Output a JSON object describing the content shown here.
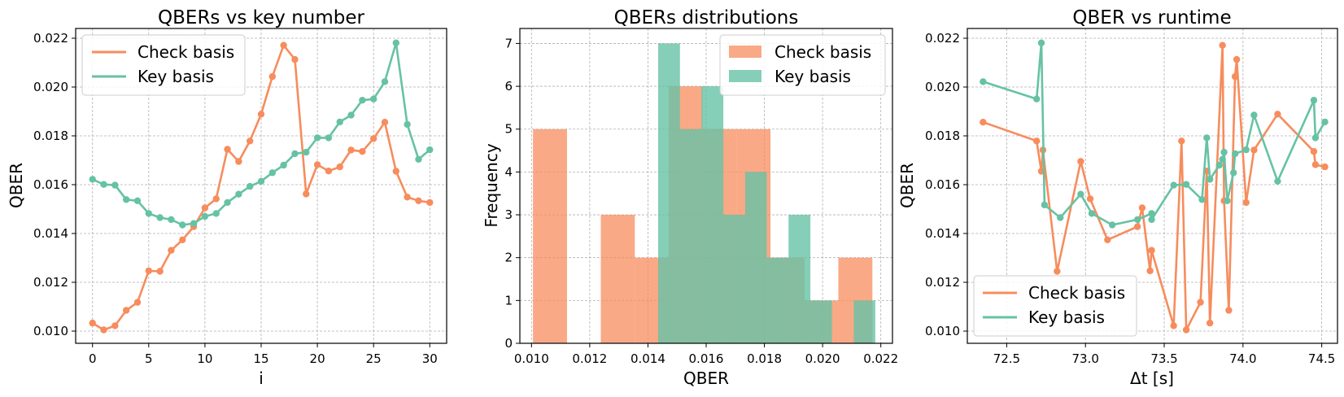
{
  "colors": {
    "check": "#f78c5d",
    "key": "#66c2a5",
    "grid": "#b0b0b0"
  },
  "chart_data": [
    {
      "type": "line",
      "title": "QBERs vs key number",
      "xlabel": "i",
      "ylabel": "QBER",
      "xlim": [
        -1.5,
        31.5
      ],
      "ylim": [
        0.0095,
        0.0224
      ],
      "xticks": [
        0,
        5,
        10,
        15,
        20,
        25,
        30
      ],
      "xtick_labels": [
        "0",
        "5",
        "10",
        "15",
        "20",
        "25",
        "30"
      ],
      "yticks": [
        0.01,
        0.012,
        0.014,
        0.016,
        0.018,
        0.02,
        0.022
      ],
      "ytick_labels": [
        "0.010",
        "0.012",
        "0.014",
        "0.016",
        "0.018",
        "0.020",
        "0.022"
      ],
      "grid": true,
      "legend": "upper-left",
      "x": [
        0,
        1,
        2,
        3,
        4,
        5,
        6,
        7,
        8,
        9,
        10,
        11,
        12,
        13,
        14,
        15,
        16,
        17,
        18,
        19,
        20,
        21,
        22,
        23,
        24,
        25,
        26,
        27,
        28,
        29,
        30
      ],
      "series": [
        {
          "name": "Check basis",
          "color": "#f78c5d",
          "values": [
            0.01033,
            0.01005,
            0.01022,
            0.01085,
            0.01118,
            0.01247,
            0.01245,
            0.01331,
            0.01374,
            0.01428,
            0.01505,
            0.01542,
            0.01745,
            0.01695,
            0.01779,
            0.01889,
            0.02043,
            0.02171,
            0.02113,
            0.01562,
            0.01682,
            0.01656,
            0.01673,
            0.01742,
            0.01736,
            0.01789,
            0.01856,
            0.01655,
            0.01549,
            0.01534,
            0.01527
          ]
        },
        {
          "name": "Key basis",
          "color": "#66c2a5",
          "values": [
            0.01622,
            0.01601,
            0.01598,
            0.01539,
            0.01534,
            0.01482,
            0.01465,
            0.01457,
            0.01435,
            0.01441,
            0.0147,
            0.01482,
            0.01527,
            0.01561,
            0.01593,
            0.01614,
            0.01649,
            0.0168,
            0.01727,
            0.01733,
            0.01792,
            0.01792,
            0.01857,
            0.01885,
            0.01946,
            0.01951,
            0.02022,
            0.02181,
            0.01847,
            0.01704,
            0.01743
          ]
        }
      ]
    },
    {
      "type": "histogram",
      "title": "QBERs distributions",
      "xlabel": "QBER",
      "ylabel": "Frequency",
      "xlim": [
        0.0096,
        0.0224
      ],
      "ylim": [
        0,
        7.35
      ],
      "xticks": [
        0.01,
        0.012,
        0.014,
        0.016,
        0.018,
        0.02,
        0.022
      ],
      "xtick_labels": [
        "0.010",
        "0.012",
        "0.014",
        "0.016",
        "0.018",
        "0.020",
        "0.022"
      ],
      "yticks": [
        0,
        1,
        2,
        3,
        4,
        5,
        6,
        7
      ],
      "ytick_labels": [
        "0",
        "1",
        "2",
        "3",
        "4",
        "5",
        "6",
        "7"
      ],
      "grid": true,
      "legend": "upper-right",
      "series": [
        {
          "name": "Check basis",
          "color": "#f78c5d",
          "opacity": 0.75,
          "bin_edges": [
            0.01005,
            0.01122,
            0.01238,
            0.01355,
            0.01471,
            0.01588,
            0.01704,
            0.01821,
            0.01938,
            0.02054,
            0.02171
          ],
          "counts": [
            5,
            0,
            3,
            2,
            6,
            5,
            5,
            2,
            1,
            2
          ]
        },
        {
          "name": "Key basis",
          "color": "#66c2a5",
          "opacity": 0.8,
          "bin_edges": [
            0.01435,
            0.0151,
            0.01584,
            0.01659,
            0.01734,
            0.01808,
            0.01883,
            0.01958,
            0.02032,
            0.02107,
            0.02181
          ],
          "counts": [
            7,
            5,
            6,
            3,
            4,
            2,
            3,
            1,
            0,
            1
          ]
        }
      ]
    },
    {
      "type": "line",
      "title": "QBER vs runtime",
      "xlabel": "Δt [s]",
      "ylabel": "QBER",
      "xlim": [
        72.25,
        74.6
      ],
      "ylim": [
        0.0095,
        0.0224
      ],
      "xticks": [
        72.5,
        73.0,
        73.5,
        74.0,
        74.5
      ],
      "xtick_labels": [
        "72.5",
        "73.0",
        "73.5",
        "74.0",
        "74.5"
      ],
      "yticks": [
        0.01,
        0.012,
        0.014,
        0.016,
        0.018,
        0.02,
        0.022
      ],
      "ytick_labels": [
        "0.010",
        "0.012",
        "0.014",
        "0.016",
        "0.018",
        "0.020",
        "0.022"
      ],
      "grid": true,
      "legend": "lower-left",
      "series": [
        {
          "name": "Check basis",
          "color": "#f78c5d",
          "x": [
            72.35,
            72.69,
            72.72,
            72.73,
            72.82,
            72.97,
            73.03,
            73.14,
            73.33,
            73.36,
            73.41,
            73.42,
            73.56,
            73.61,
            73.64,
            73.73,
            73.77,
            73.79,
            73.87,
            73.88,
            73.91,
            73.95,
            73.96,
            74.02,
            74.07,
            74.22,
            74.45,
            74.46,
            74.52
          ],
          "y": [
            0.01856,
            0.01779,
            0.01655,
            0.01742,
            0.01245,
            0.01695,
            0.01542,
            0.01374,
            0.01428,
            0.01505,
            0.01247,
            0.01331,
            0.01022,
            0.01779,
            0.01005,
            0.01118,
            0.01656,
            0.01033,
            0.02171,
            0.01534,
            0.01085,
            0.02043,
            0.02113,
            0.01527,
            0.01742,
            0.01889,
            0.01736,
            0.01682,
            0.01673
          ]
        },
        {
          "name": "Key basis",
          "color": "#66c2a5",
          "x": [
            72.35,
            72.69,
            72.72,
            72.74,
            72.84,
            72.97,
            73.04,
            73.17,
            73.33,
            73.42,
            73.42,
            73.56,
            73.64,
            73.74,
            73.77,
            73.79,
            73.85,
            73.87,
            73.88,
            73.9,
            73.94,
            73.95,
            74.02,
            74.07,
            74.22,
            74.45,
            74.46,
            74.52
          ],
          "y": [
            0.02022,
            0.01951,
            0.02181,
            0.01517,
            0.01465,
            0.01561,
            0.01482,
            0.01435,
            0.01457,
            0.01482,
            0.01457,
            0.01598,
            0.01601,
            0.01539,
            0.01792,
            0.01622,
            0.0168,
            0.01704,
            0.01733,
            0.01534,
            0.01649,
            0.01727,
            0.01743,
            0.01885,
            0.01614,
            0.01946,
            0.01792,
            0.01857
          ]
        }
      ]
    }
  ]
}
